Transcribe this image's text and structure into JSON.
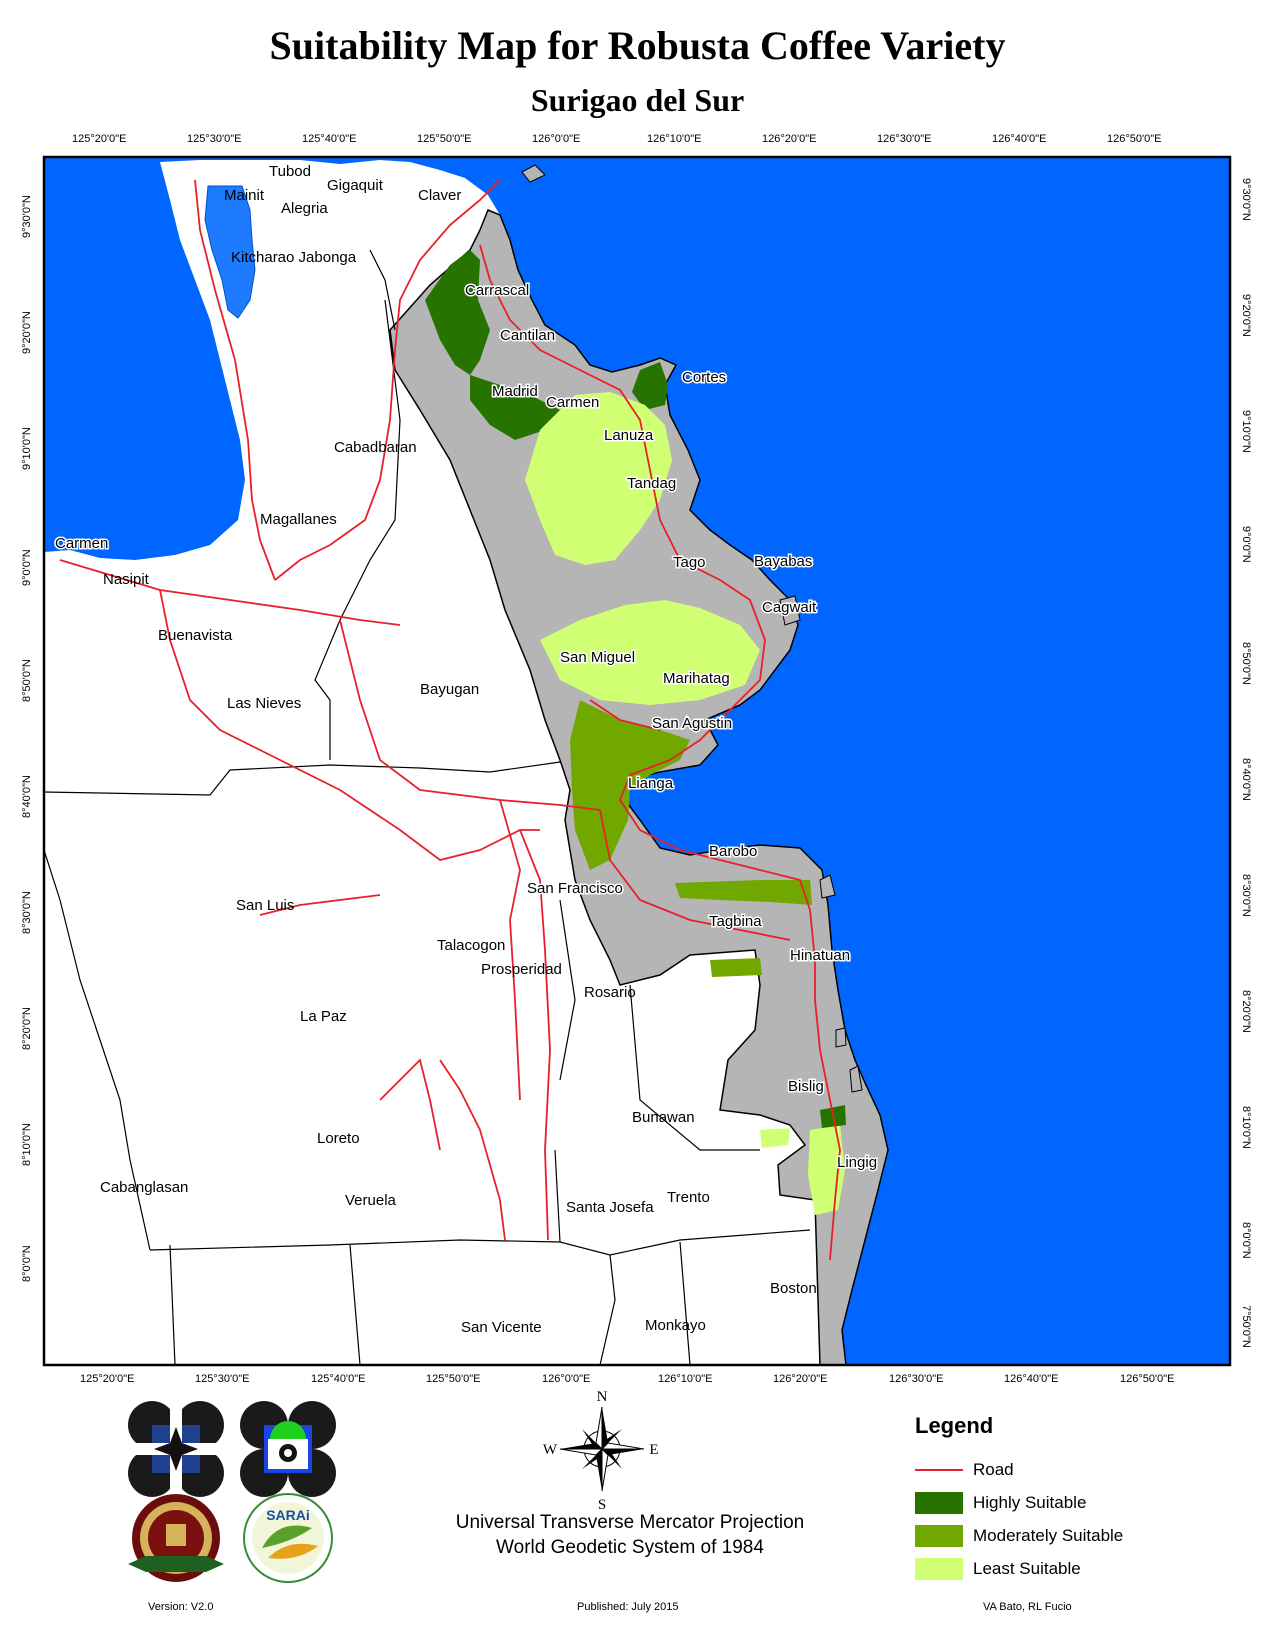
{
  "title": "Suitability Map for Robusta Coffee Variety",
  "subtitle": "Surigao del Sur",
  "top_longitude_labels": [
    "125°20'0\"E",
    "125°30'0\"E",
    "125°40'0\"E",
    "125°50'0\"E",
    "126°0'0\"E",
    "126°10'0\"E",
    "126°20'0\"E",
    "126°30'0\"E",
    "126°40'0\"E",
    "126°50'0\"E"
  ],
  "bottom_longitude_labels": [
    "125°20'0\"E",
    "125°30'0\"E",
    "125°40'0\"E",
    "125°50'0\"E",
    "126°0'0\"E",
    "126°10'0\"E",
    "126°20'0\"E",
    "126°30'0\"E",
    "126°40'0\"E",
    "126°50'0\"E"
  ],
  "latitude_labels": [
    "9°30'0\"N",
    "9°20'0\"N",
    "9°10'0\"N",
    "9°0'0\"N",
    "8°50'0\"N",
    "8°40'0\"N",
    "8°30'0\"N",
    "8°20'0\"N",
    "8°10'0\"N",
    "8°0'0\"N",
    "7°50'0\"N"
  ],
  "places": {
    "tubod": "Tubod",
    "gigaquit": "Gigaquit",
    "mainit": "Mainit",
    "alegria": "Alegria",
    "claver": "Claver",
    "kitcharao_jabonga": "Kitcharao Jabonga",
    "carrascal": "Carrascal",
    "cantilan": "Cantilan",
    "cortes": "Cortes",
    "madrid": "Madrid",
    "carmen_sur": "Carmen",
    "lanuza": "Lanuza",
    "cabadbaran": "Cabadbaran",
    "tandag": "Tandag",
    "magallanes": "Magallanes",
    "carmen_west": "Carmen",
    "nasipit": "Nasipit",
    "tago": "Tago",
    "bayabas": "Bayabas",
    "cagwait": "Cagwait",
    "buenavista": "Buenavista",
    "san_miguel": "San Miguel",
    "marihatag": "Marihatag",
    "bayugan": "Bayugan",
    "las_nieves": "Las Nieves",
    "san_agustin": "San Agustin",
    "lianga": "Lianga",
    "barobo": "Barobo",
    "san_francisco": "San Francisco",
    "san_luis": "San Luis",
    "tagbina": "Tagbina",
    "talacogon": "Talacogon",
    "hinatuan": "Hinatuan",
    "prosperidad": "Prosperidad",
    "rosario": "Rosario",
    "la_paz": "La Paz",
    "bislig": "Bislig",
    "bunawan": "Bunawan",
    "loreto": "Loreto",
    "lingig": "Lingig",
    "cabanglasan": "Cabanglasan",
    "veruela": "Veruela",
    "santa_josefa": "Santa Josefa",
    "trento": "Trento",
    "boston": "Boston",
    "san_vicente": "San Vicente",
    "monkayo": "Monkayo"
  },
  "north_arrow": {
    "n": "N",
    "s": "S",
    "e": "E",
    "w": "W"
  },
  "legend": {
    "title": "Legend",
    "items": [
      {
        "label": "Road",
        "color": "#e8202a"
      },
      {
        "label": "Highly Suitable",
        "color": "#267300"
      },
      {
        "label": "Moderately Suitable",
        "color": "#70a800"
      },
      {
        "label": "Least Suitable",
        "color": "#d1ff73"
      }
    ]
  },
  "projection": {
    "line1": "Universal Transverse Mercator Projection",
    "line2": "World Geodetic System of 1984"
  },
  "footer": {
    "version": "Version: V2.0",
    "published": "Published: July 2015",
    "authors": "VA Bato, RL Fucio"
  },
  "logos": {
    "seal_text": "UNIVERSITY OF THE PHILIPPINES LOS BAÑOS 1908",
    "sarai_text": "SARAi"
  },
  "colors": {
    "sea": "#0066ff",
    "lake": "#1e7bff",
    "province": "#b5b5b5",
    "road": "#e8202a",
    "highly_suitable": "#267300",
    "moderately_suitable": "#70a800",
    "least_suitable": "#d1ff73"
  }
}
